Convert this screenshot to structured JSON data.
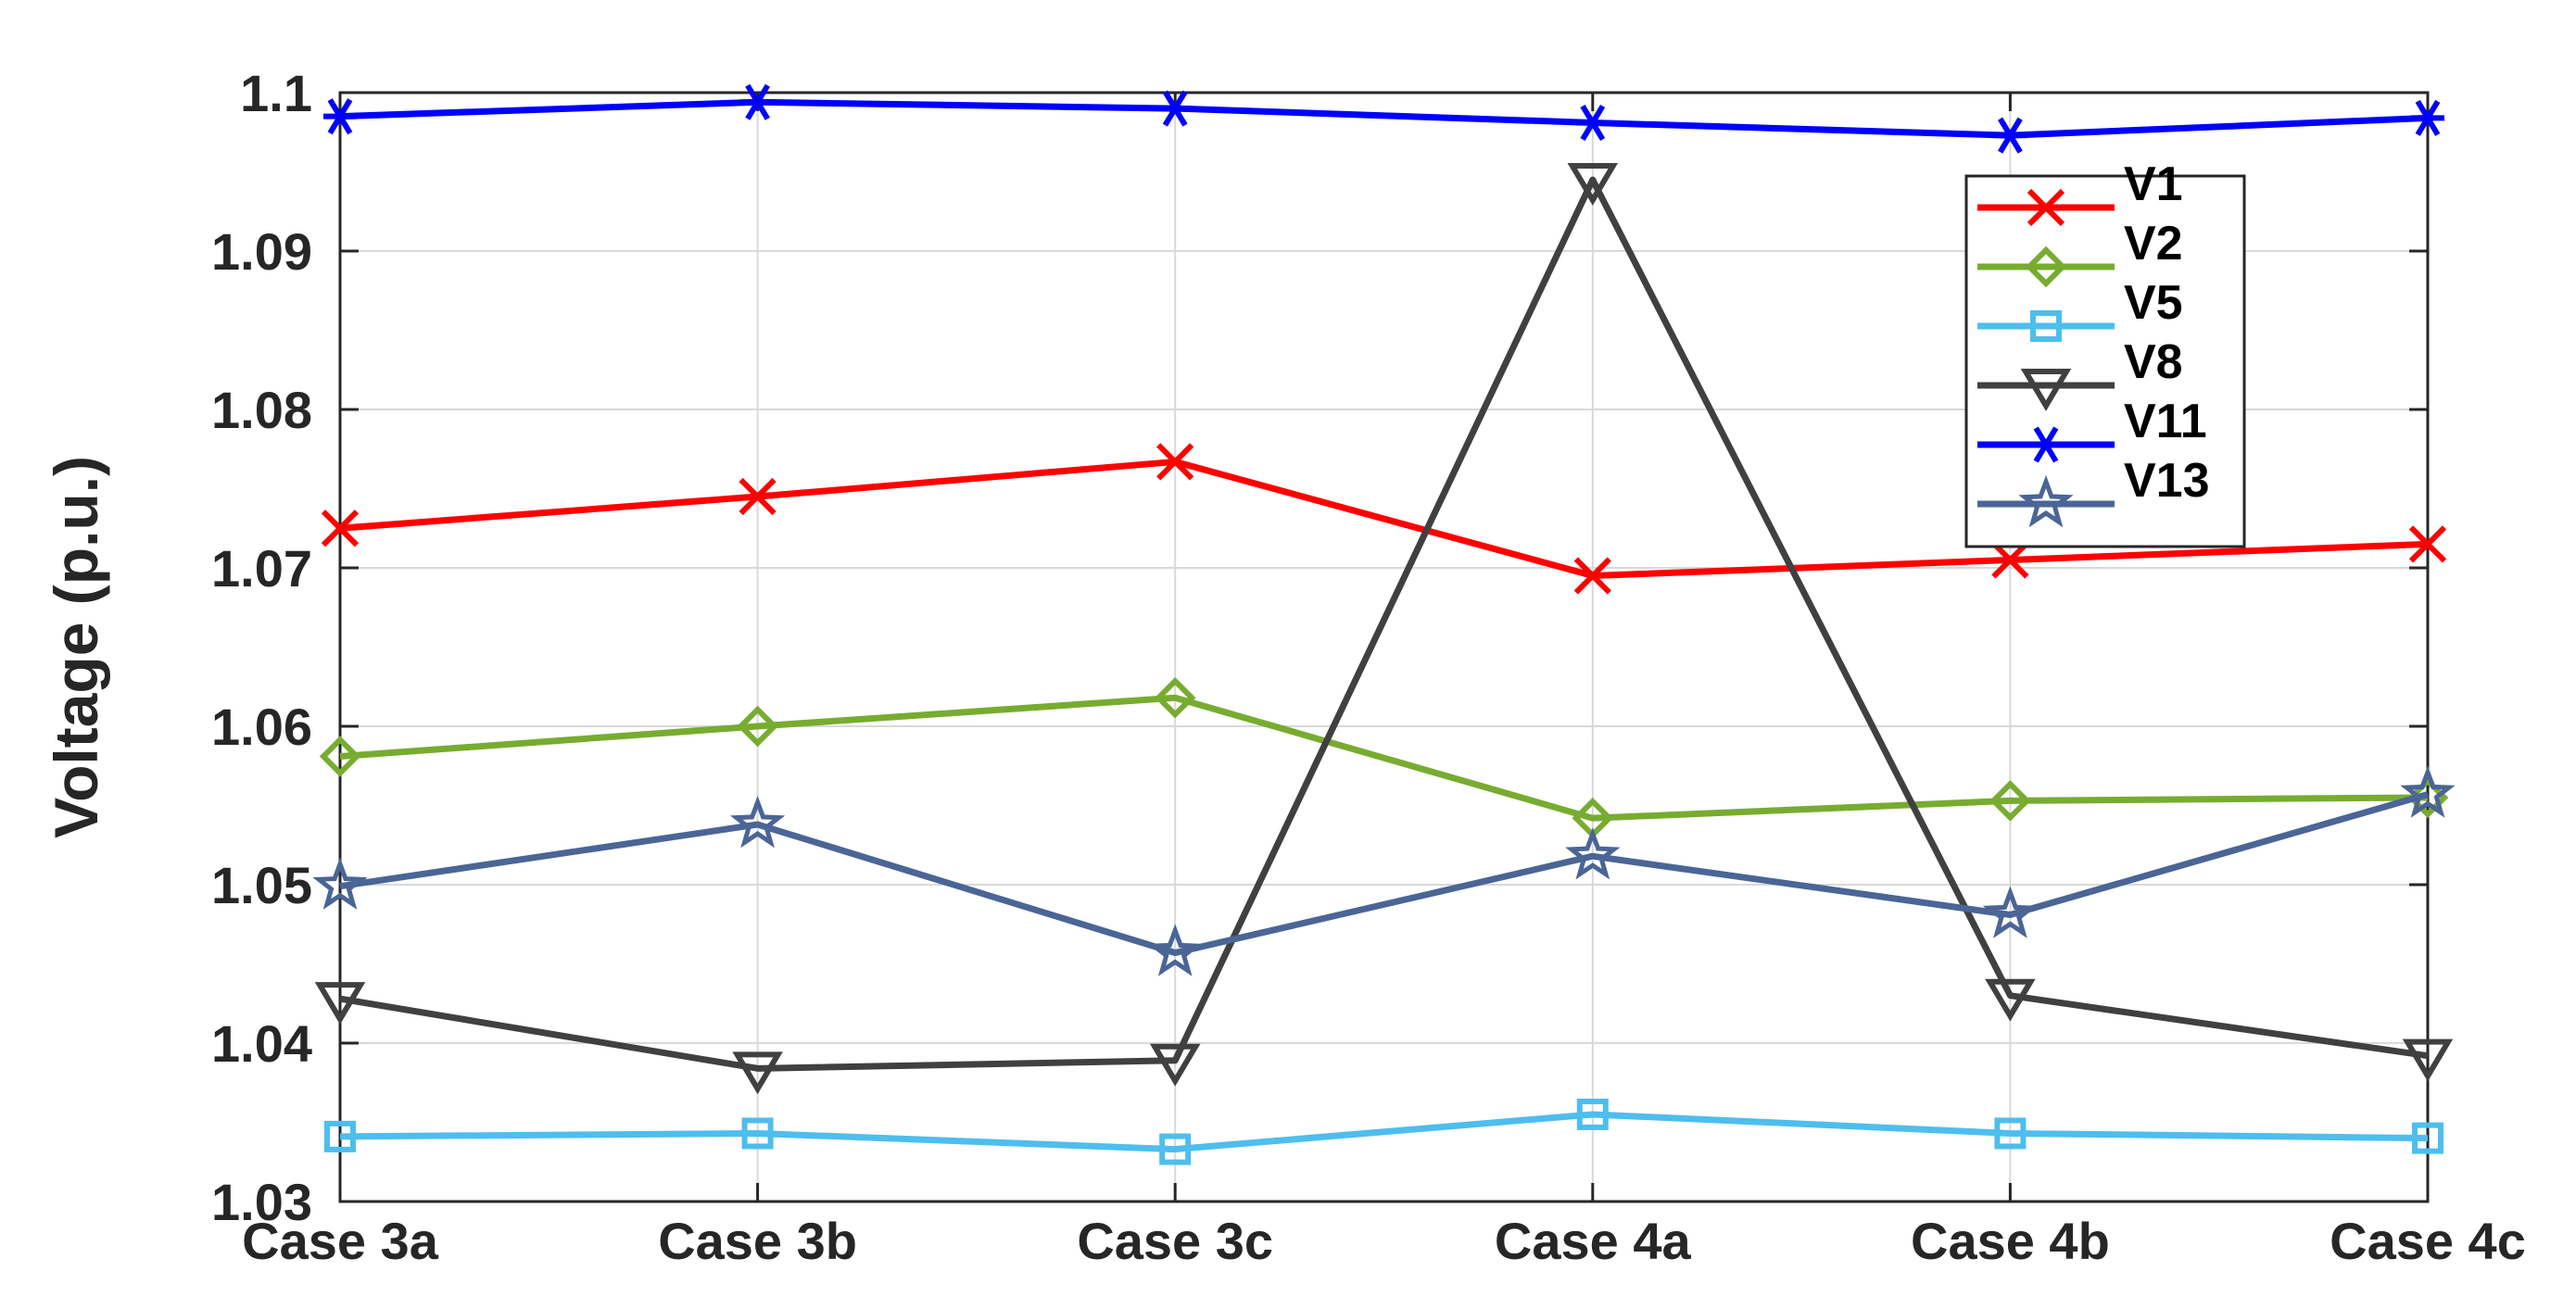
{
  "chart_data": {
    "type": "line",
    "title": "",
    "xlabel": "",
    "ylabel": "Voltage (p.u.)",
    "categories": [
      "Case 3a",
      "Case 3b",
      "Case 3c",
      "Case 4a",
      "Case 4b",
      "Case 4c"
    ],
    "ylim": [
      1.03,
      1.1
    ],
    "yticks": [
      "1.03",
      "1.04",
      "1.05",
      "1.06",
      "1.07",
      "1.08",
      "1.09",
      "1.1"
    ],
    "grid": true,
    "legend_position": "top-right",
    "series": [
      {
        "name": "V1",
        "color": "#ff0000",
        "marker": "x",
        "values": [
          1.0725,
          1.0745,
          1.0767,
          1.0695,
          1.0705,
          1.0715
        ]
      },
      {
        "name": "V2",
        "color": "#77ac30",
        "marker": "diamond",
        "values": [
          1.0581,
          1.06,
          1.0618,
          1.0542,
          1.0553,
          1.0555
        ]
      },
      {
        "name": "V5",
        "color": "#4dbeee",
        "marker": "square",
        "values": [
          1.0341,
          1.0343,
          1.0333,
          1.0355,
          1.0343,
          1.034
        ]
      },
      {
        "name": "V8",
        "color": "#404040",
        "marker": "triangle-down",
        "values": [
          1.0428,
          1.0384,
          1.0389,
          1.0945,
          1.043,
          1.0392
        ]
      },
      {
        "name": "V11",
        "color": "#0000ff",
        "marker": "asterisk",
        "values": [
          1.0985,
          1.0994,
          1.099,
          1.0981,
          1.0973,
          1.0984
        ]
      },
      {
        "name": "V13",
        "color": "#4a6596",
        "marker": "star",
        "values": [
          1.0499,
          1.0538,
          1.0457,
          1.0518,
          1.0481,
          1.0557
        ]
      }
    ]
  }
}
